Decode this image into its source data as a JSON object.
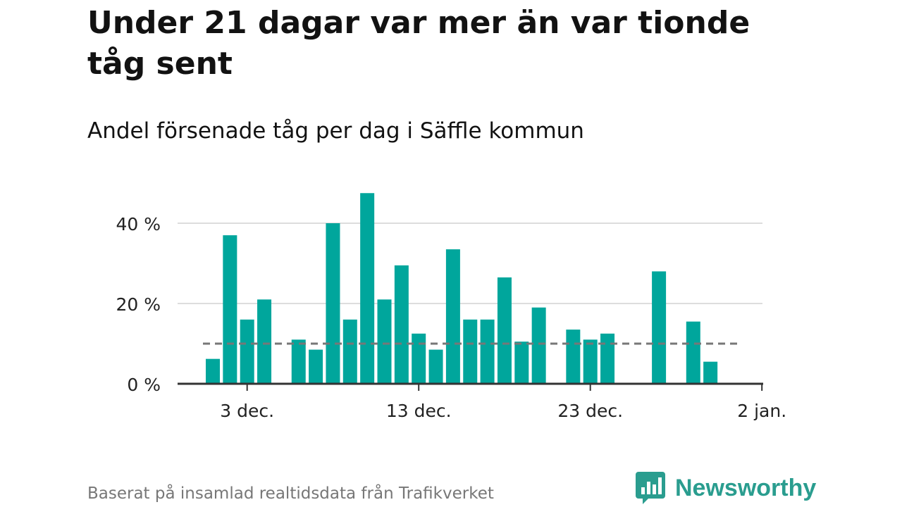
{
  "title": "Under 21 dagar var mer än var tionde tåg sent",
  "subtitle": "Andel försenade tåg per dag i Säffle kommun",
  "footer": "Baserat på insamlad realtidsdata från Trafikverket",
  "brand": {
    "name": "Newsworthy",
    "icon": "newsworthy-logo-icon"
  },
  "colors": {
    "bar": "#00a69c",
    "reference": "#777777",
    "grid": "#dddddd",
    "axis": "#333333",
    "brand": "#2a9d8f"
  },
  "chart_data": {
    "type": "bar",
    "x": [
      "2023-12-01",
      "2023-12-02",
      "2023-12-03",
      "2023-12-04",
      "2023-12-05",
      "2023-12-06",
      "2023-12-07",
      "2023-12-08",
      "2023-12-09",
      "2023-12-10",
      "2023-12-11",
      "2023-12-12",
      "2023-12-13",
      "2023-12-14",
      "2023-12-15",
      "2023-12-16",
      "2023-12-17",
      "2023-12-18",
      "2023-12-19",
      "2023-12-20",
      "2023-12-21",
      "2023-12-22",
      "2023-12-23",
      "2023-12-24",
      "2023-12-25",
      "2023-12-26",
      "2023-12-27",
      "2023-12-28",
      "2023-12-29",
      "2023-12-30",
      "2023-12-31",
      "2024-01-01"
    ],
    "values": [
      6.2,
      37,
      16,
      21,
      null,
      11,
      8.5,
      40,
      16,
      47.5,
      21,
      29.5,
      12.5,
      8.5,
      33.5,
      16,
      16,
      26.5,
      10.5,
      19,
      null,
      13.5,
      11,
      12.5,
      null,
      null,
      28,
      null,
      15.5,
      5.5,
      null,
      null
    ],
    "reference_line": 10,
    "ylim": [
      0,
      50
    ],
    "yticks": [
      0,
      20,
      40
    ],
    "ytick_labels": [
      "0 %",
      "20 %",
      "40 %"
    ],
    "xticks": [
      "2023-12-03",
      "2023-12-13",
      "2023-12-23",
      "2024-01-02"
    ],
    "xtick_labels": [
      "3 dec.",
      "13 dec.",
      "23 dec.",
      "2 jan."
    ],
    "grid": true,
    "title": "Under 21 dagar var mer än var tionde tåg sent",
    "subtitle": "Andel försenade tåg per dag i Säffle kommun",
    "xlabel": "",
    "ylabel": ""
  }
}
